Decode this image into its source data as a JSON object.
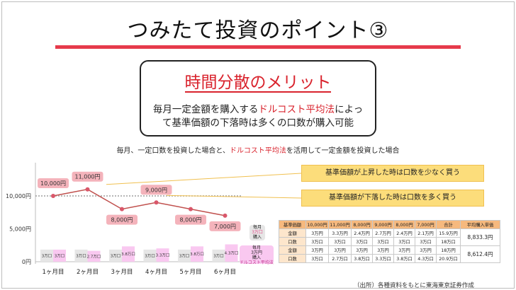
{
  "title": "つみたて投資のポイント③",
  "merit": {
    "heading": "時間分散のメリット",
    "desc_a": "毎月一定金額を購入する",
    "desc_highlight": "ドルコスト平均法",
    "desc_b": "によっ",
    "desc_line2": "て基準価額の下落時は多くの口数が購入可能"
  },
  "caption": {
    "part_a": "毎月、一定口数を投資した場合と、",
    "highlight": "ドルコスト平均法",
    "part_b": "を活用して一定金額を投資した場合"
  },
  "chart_data": {
    "type": "line",
    "categories": [
      "1ヶ月目",
      "2ヶ月目",
      "3ヶ月目",
      "4ヶ月目",
      "5ヶ月目",
      "6ヶ月目"
    ],
    "series": [
      {
        "name": "",
        "values": [
          10000,
          11000,
          8000,
          9000,
          8000,
          7000
        ]
      }
    ],
    "point_labels": [
      "10,000円",
      "11,000円",
      "8,000円",
      "9,000円",
      "8,000円",
      "7,000円"
    ],
    "yticks": [
      {
        "value": 10000,
        "label": "10,000円"
      },
      {
        "value": 5000,
        "label": "5,000円"
      },
      {
        "value": 0,
        "label": "0円"
      }
    ],
    "ylim": [
      0,
      12500
    ],
    "reference_value": 10000,
    "bars_fixed_units": [
      {
        "value": 3,
        "label": "3万口"
      },
      {
        "value": 3,
        "label": "3万口"
      },
      {
        "value": 3,
        "label": "3万口"
      },
      {
        "value": 3,
        "label": "3万口"
      },
      {
        "value": 3,
        "label": "3万口"
      },
      {
        "value": 3,
        "label": "3万口"
      }
    ],
    "bars_fixed_amount": [
      {
        "value": 3,
        "label": "3万口"
      },
      {
        "value": 2.7,
        "label": "2.7万口"
      },
      {
        "value": 3.8,
        "label": "3.8万口"
      },
      {
        "value": 3.3,
        "label": "3.3万口"
      },
      {
        "value": 3.8,
        "label": "3.8万口"
      },
      {
        "value": 4.3,
        "label": "4.3万口"
      }
    ],
    "legend": [
      {
        "lines": [
          "毎月",
          "3万口",
          "購入"
        ],
        "color": "#e6e6e6"
      },
      {
        "lines": [
          "毎月",
          "3万円",
          "購入"
        ],
        "sub": "ドルコスト平均法",
        "color": "#f9c8f0"
      }
    ]
  },
  "callouts": [
    {
      "text": "基準価額が上昇した時は口数を少なく買う"
    },
    {
      "text": "基準価額が下落した時は口数を多く買う"
    }
  ],
  "table": {
    "headers": [
      "基準価額",
      "10,000円",
      "11,000円",
      "8,000円",
      "9,000円",
      "8,000円",
      "7,000円",
      "合計",
      "平均購入単価"
    ],
    "rows": [
      [
        "金額",
        "3万円",
        "3.3万円",
        "2.4万円",
        "2.7万円",
        "2.4万円",
        "2.1万円",
        "15.9万円"
      ],
      [
        "口数",
        "3万口",
        "3万口",
        "3万口",
        "3万口",
        "3万口",
        "3万口",
        "18万口"
      ],
      [
        "金額",
        "3万円",
        "3万円",
        "3万円",
        "3万円",
        "3万円",
        "3万円",
        "18万円"
      ],
      [
        "口数",
        "3万口",
        "2.7万口",
        "3.8万口",
        "3.3万口",
        "3.8万口",
        "4.3万口",
        "20.9万口"
      ]
    ],
    "avg_fixed_units": "8,833.3円",
    "avg_fixed_amount": "8,612.4円"
  },
  "source": "（出所）各種資料をもとに東海東京証券作成",
  "colors": {
    "accent_red": "#e63a4b",
    "line": "#c0504d",
    "marker": "#d9576a",
    "label_bg": "#f4b3bb",
    "bar_gray": "#e6e6e6",
    "bar_pink": "#f9c8f0",
    "callout": "#fcdd7b",
    "table_header": "#f6b97e",
    "table_label": "#fde6cc"
  }
}
